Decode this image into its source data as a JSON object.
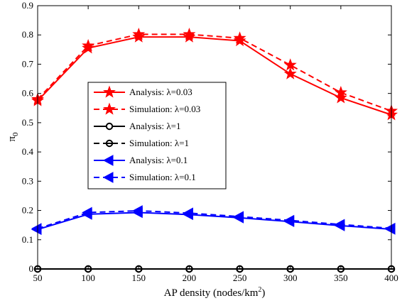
{
  "chart_data": {
    "type": "line",
    "title": "",
    "xlabel": "AP density (nodes/km",
    "xlabel_sup": "2",
    "xlabel_suffix": ")",
    "ylabel": "π",
    "ylabel_sub": "0",
    "x": [
      50,
      100,
      150,
      200,
      250,
      300,
      350,
      400
    ],
    "xlim": [
      50,
      400
    ],
    "ylim": [
      0,
      0.9
    ],
    "xticks": [
      50,
      100,
      150,
      200,
      250,
      300,
      350,
      400
    ],
    "yticks": [
      0,
      0.1,
      0.2,
      0.3,
      0.4,
      0.5,
      0.6,
      0.7,
      0.8,
      0.9
    ],
    "grid": false,
    "legend_position": "center-left",
    "series": [
      {
        "name": "Analysis: λ=0.03",
        "color": "#ff0000",
        "dash": "solid",
        "marker": "star",
        "values": [
          0.575,
          0.755,
          0.793,
          0.793,
          0.78,
          0.667,
          0.585,
          0.527
        ]
      },
      {
        "name": "Simulation: λ=0.03",
        "color": "#ff0000",
        "dash": "dashed",
        "marker": "star",
        "values": [
          0.58,
          0.763,
          0.802,
          0.802,
          0.789,
          0.697,
          0.603,
          0.54
        ]
      },
      {
        "name": "Analysis: λ=1",
        "color": "#000000",
        "dash": "solid",
        "marker": "circle",
        "values": [
          0,
          0,
          0,
          0,
          0,
          0,
          0,
          0
        ]
      },
      {
        "name": "Simulation: λ=1",
        "color": "#000000",
        "dash": "dashed",
        "marker": "circle-bar",
        "values": [
          0,
          0,
          0,
          0,
          0,
          0,
          0,
          0
        ]
      },
      {
        "name": "Analysis: λ=0.1",
        "color": "#0000ff",
        "dash": "solid",
        "marker": "triangle-left",
        "values": [
          0.135,
          0.187,
          0.193,
          0.186,
          0.175,
          0.162,
          0.148,
          0.136
        ]
      },
      {
        "name": "Simulation: λ=0.1",
        "color": "#0000ff",
        "dash": "dashed",
        "marker": "triangle-left",
        "values": [
          0.138,
          0.193,
          0.199,
          0.191,
          0.179,
          0.166,
          0.152,
          0.139
        ]
      }
    ]
  }
}
